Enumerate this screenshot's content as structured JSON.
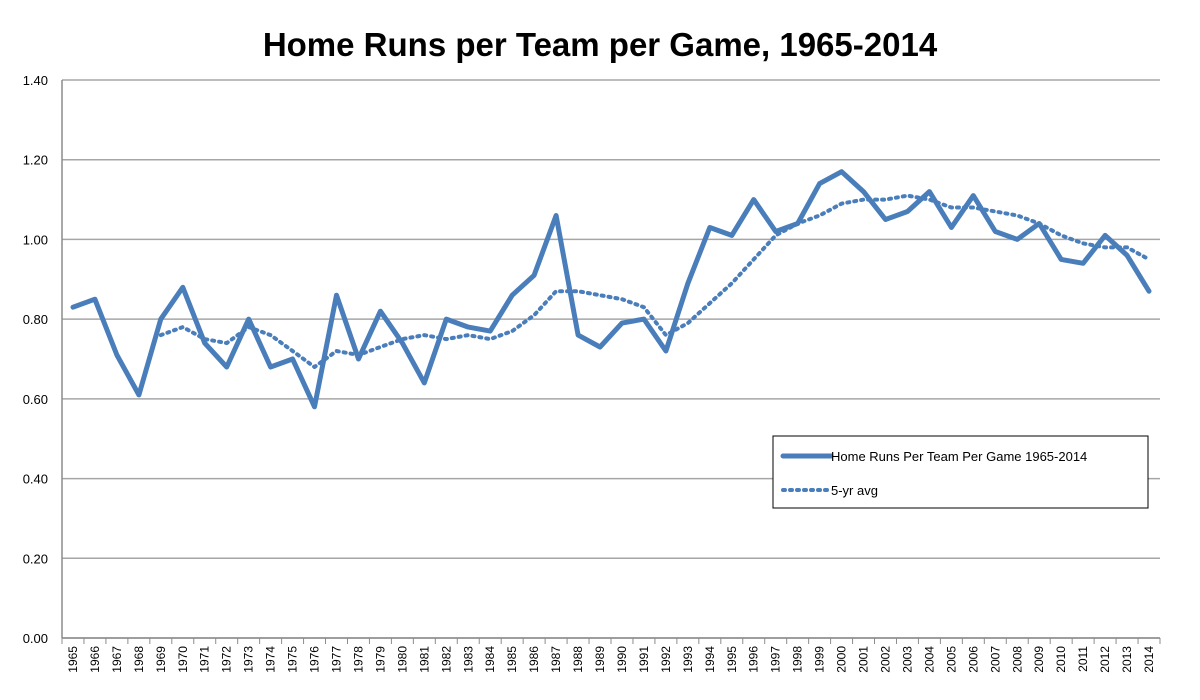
{
  "chart_data": {
    "type": "line",
    "title": "Home Runs per Team per Game, 1965-2014",
    "xlabel": "",
    "ylabel": "",
    "ylim": [
      0,
      1.4
    ],
    "yticks": [
      "0.00",
      "0.20",
      "0.40",
      "0.60",
      "0.80",
      "1.00",
      "1.20",
      "1.40"
    ],
    "categories": [
      "1965",
      "1966",
      "1967",
      "1968",
      "1969",
      "1970",
      "1971",
      "1972",
      "1973",
      "1974",
      "1975",
      "1976",
      "1977",
      "1978",
      "1979",
      "1980",
      "1981",
      "1982",
      "1983",
      "1984",
      "1985",
      "1986",
      "1987",
      "1988",
      "1989",
      "1990",
      "1991",
      "1992",
      "1993",
      "1994",
      "1995",
      "1996",
      "1997",
      "1998",
      "1999",
      "2000",
      "2001",
      "2002",
      "2003",
      "2004",
      "2005",
      "2006",
      "2007",
      "2008",
      "2009",
      "2010",
      "2011",
      "2012",
      "2013",
      "2014"
    ],
    "grid": true,
    "legend_position": "right",
    "series": [
      {
        "name": "Home Runs Per Team Per Game 1965-2014",
        "style": "solid",
        "color": "#4a7ebb",
        "values": [
          0.83,
          0.85,
          0.71,
          0.61,
          0.8,
          0.88,
          0.74,
          0.68,
          0.8,
          0.68,
          0.7,
          0.58,
          0.86,
          0.7,
          0.82,
          0.74,
          0.64,
          0.8,
          0.78,
          0.77,
          0.86,
          0.91,
          1.06,
          0.76,
          0.73,
          0.79,
          0.8,
          0.72,
          0.89,
          1.03,
          1.01,
          1.1,
          1.02,
          1.04,
          1.14,
          1.17,
          1.12,
          1.05,
          1.07,
          1.12,
          1.03,
          1.11,
          1.02,
          1.0,
          1.04,
          0.95,
          0.94,
          1.01,
          0.96,
          0.87
        ]
      },
      {
        "name": "5-yr avg",
        "style": "dotted",
        "color": "#4a7ebb",
        "values": [
          null,
          null,
          null,
          null,
          0.76,
          0.78,
          0.75,
          0.74,
          0.78,
          0.76,
          0.72,
          0.68,
          0.72,
          0.71,
          0.73,
          0.75,
          0.76,
          0.75,
          0.76,
          0.75,
          0.77,
          0.81,
          0.87,
          0.87,
          0.86,
          0.85,
          0.83,
          0.76,
          0.79,
          0.84,
          0.89,
          0.95,
          1.01,
          1.04,
          1.06,
          1.09,
          1.1,
          1.1,
          1.11,
          1.1,
          1.08,
          1.08,
          1.07,
          1.06,
          1.04,
          1.01,
          0.99,
          0.98,
          0.98,
          0.95
        ]
      }
    ]
  }
}
